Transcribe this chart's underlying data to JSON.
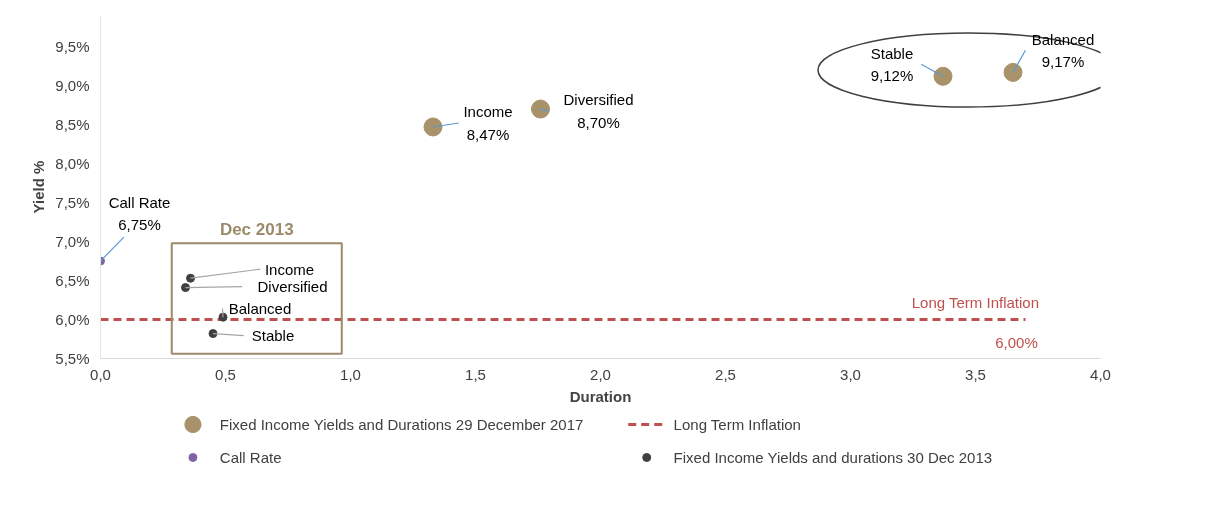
{
  "chart_data": {
    "type": "scatter",
    "xlabel": "Duration",
    "ylabel": "Yield %",
    "xlim": [
      0,
      4
    ],
    "ylim": [
      5.5,
      9.9
    ],
    "xticks": [
      {
        "value": 0,
        "label": "0,0"
      },
      {
        "value": 0.5,
        "label": "0,5"
      },
      {
        "value": 1,
        "label": "1,0"
      },
      {
        "value": 1.5,
        "label": "1,5"
      },
      {
        "value": 2,
        "label": "2,0"
      },
      {
        "value": 2.5,
        "label": "2,5"
      },
      {
        "value": 3,
        "label": "3,0"
      },
      {
        "value": 3.5,
        "label": "3,5"
      },
      {
        "value": 4,
        "label": "4,0"
      }
    ],
    "yticks": [
      {
        "value": 5.5,
        "label": "5,5%"
      },
      {
        "value": 6,
        "label": "6,0%"
      },
      {
        "value": 6.5,
        "label": "6,5%"
      },
      {
        "value": 7,
        "label": "7,0%"
      },
      {
        "value": 7.5,
        "label": "7,5%"
      },
      {
        "value": 8,
        "label": "8,0%"
      },
      {
        "value": 8.5,
        "label": "8,5%"
      },
      {
        "value": 9,
        "label": "9,0%"
      },
      {
        "value": 9.5,
        "label": "9,5%"
      }
    ],
    "grid": false,
    "legend": "bottom",
    "marker": "circle",
    "series": [
      {
        "name": "Fixed Income Yields and Durations 29 December 2017",
        "color": "#a8926a",
        "x": [
          1.33,
          1.76,
          3.37,
          3.65
        ],
        "values": [
          8.47,
          8.7,
          9.12,
          9.17
        ]
      },
      {
        "name": "Long Term Inflation",
        "type": "line",
        "line_style": "dashed",
        "marker": "none",
        "color": "#c0504d",
        "x": [
          0,
          3.7
        ],
        "values": [
          6.0,
          6.0
        ]
      },
      {
        "name": "Call Rate",
        "color": "#8064a2",
        "x": [
          0
        ],
        "values": [
          6.75
        ]
      },
      {
        "name": "Fixed Income Yields and durations 30 Dec 2013",
        "color": "#404040",
        "x": [
          0.36,
          0.34,
          0.49,
          0.45
        ],
        "values": [
          6.53,
          6.41,
          6.03,
          5.82
        ]
      }
    ],
    "annotations": [
      {
        "text": "Income\n8,47%",
        "x": 1.33,
        "y": 8.47
      },
      {
        "text": "Diversified\n8,70%",
        "x": 1.76,
        "y": 8.7
      },
      {
        "text": "Stable\n9,12%",
        "x": 3.37,
        "y": 9.12
      },
      {
        "text": "Balanced\n9,17%",
        "x": 3.65,
        "y": 9.17
      },
      {
        "text": "Call Rate\n6,75%",
        "x": 0,
        "y": 6.75
      },
      {
        "text": "Income",
        "x": 0.36,
        "y": 6.53
      },
      {
        "text": "Diversified",
        "x": 0.34,
        "y": 6.41
      },
      {
        "text": "Balanced",
        "x": 0.49,
        "y": 6.03
      },
      {
        "text": "Stable",
        "x": 0.45,
        "y": 5.82
      },
      {
        "text": "Long Term Inflation",
        "x": 3.7,
        "y": 6.0
      },
      {
        "text": "6,00%",
        "x": 3.7,
        "y": 6.0
      },
      "Dec 2013"
    ]
  }
}
